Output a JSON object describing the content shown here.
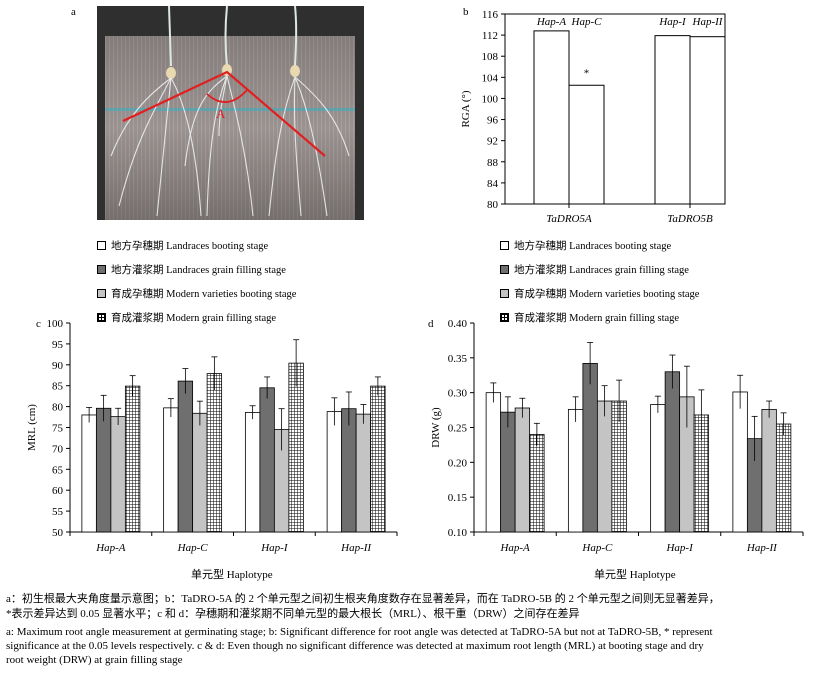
{
  "panel_labels": {
    "a": "a",
    "b": "b",
    "c": "c",
    "d": "d"
  },
  "photo": {
    "angle_label": "A"
  },
  "colors": {
    "landrace_booting": "#ffffff",
    "landrace_filling": "#6f6f6f",
    "modern_booting": "#c4c4c4",
    "modern_filling": "grid",
    "angle_line": "#e02020"
  },
  "legend": [
    {
      "key": "white",
      "zh": "地方孕穗期",
      "en": "Landraces booting stage"
    },
    {
      "key": "dark",
      "zh": "地方灌浆期",
      "en": "Landraces grain filling stage"
    },
    {
      "key": "light",
      "zh": "育成孕穗期",
      "en": "Modern varieties booting stage"
    },
    {
      "key": "grid",
      "zh": "育成灌浆期",
      "en": "Modern grain filling stage"
    }
  ],
  "x_axis_title": "单元型 Haplotype",
  "chart_data": [
    {
      "id": "b",
      "type": "bar",
      "ylabel": "RGA (°)",
      "ylim": [
        80,
        116
      ],
      "yticks": [
        80,
        84,
        88,
        92,
        96,
        100,
        104,
        108,
        112,
        116
      ],
      "groups": [
        "TaDRO5A",
        "TaDRO5B"
      ],
      "bar_labels": [
        "Hap-A",
        "Hap-C",
        "Hap-I",
        "Hap-II"
      ],
      "values": [
        112.8,
        102.5,
        111.9,
        111.7
      ],
      "annotation": "*"
    },
    {
      "id": "c",
      "type": "bar",
      "ylabel": "MRL (cm)",
      "ylim": [
        50,
        100
      ],
      "yticks": [
        50,
        55,
        60,
        65,
        70,
        75,
        80,
        85,
        90,
        95,
        100
      ],
      "categories": [
        "Hap-A",
        "Hap-C",
        "Hap-I",
        "Hap-II"
      ],
      "series": [
        {
          "name": "Landraces booting stage",
          "values": [
            78.0,
            79.7,
            78.6,
            78.8
          ],
          "errors": [
            1.8,
            2.2,
            1.6,
            3.3
          ]
        },
        {
          "name": "Landraces grain filling stage",
          "values": [
            79.6,
            86.1,
            84.5,
            79.5
          ],
          "errors": [
            3.1,
            3.0,
            2.6,
            4.0
          ]
        },
        {
          "name": "Modern varieties booting stage",
          "values": [
            77.6,
            78.4,
            74.5,
            78.2
          ],
          "errors": [
            2.0,
            2.9,
            5.0,
            2.3
          ]
        },
        {
          "name": "Modern grain filling stage",
          "values": [
            84.9,
            87.9,
            90.4,
            84.9
          ],
          "errors": [
            2.5,
            4.0,
            5.6,
            2.2
          ]
        }
      ]
    },
    {
      "id": "d",
      "type": "bar",
      "ylabel": "DRW (g)",
      "ylim": [
        0.1,
        0.4
      ],
      "yticks": [
        0.1,
        0.15,
        0.2,
        0.25,
        0.3,
        0.35,
        0.4
      ],
      "categories": [
        "Hap-A",
        "Hap-C",
        "Hap-I",
        "Hap-II"
      ],
      "series": [
        {
          "name": "Landraces booting stage",
          "values": [
            0.3,
            0.276,
            0.283,
            0.301
          ],
          "errors": [
            0.014,
            0.018,
            0.012,
            0.024
          ]
        },
        {
          "name": "Landraces grain filling stage",
          "values": [
            0.272,
            0.342,
            0.33,
            0.234
          ],
          "errors": [
            0.022,
            0.03,
            0.024,
            0.032
          ]
        },
        {
          "name": "Modern varieties booting stage",
          "values": [
            0.278,
            0.288,
            0.294,
            0.276
          ],
          "errors": [
            0.014,
            0.022,
            0.044,
            0.012
          ]
        },
        {
          "name": "Modern grain filling stage",
          "values": [
            0.24,
            0.288,
            0.268,
            0.255
          ],
          "errors": [
            0.016,
            0.03,
            0.036,
            0.016
          ]
        }
      ]
    }
  ],
  "caption": {
    "zh_line1": "a：初生根最大夹角度量示意图；b：TaDRO-5A 的 2 个单元型之间初生根夹角度数存在显著差异，而在 TaDRO-5B 的 2 个单元型之间则无显著差异，",
    "zh_line2": "*表示差异达到 0.05 显著水平；c 和 d：孕穗期和灌浆期不同单元型的最大根长（MRL）、根干重（DRW）之间存在差异",
    "en_line1": "a: Maximum root angle measurement at germinating stage; b: Significant difference for root angle was detected at TaDRO-5A but not at TaDRO-5B, * represent",
    "en_line2": "significance at the 0.05 levels respectively. c & d: Even though no significant difference was detected at maximum root length (MRL) at booting stage and dry",
    "en_line3": "root weight (DRW) at grain filling stage"
  }
}
